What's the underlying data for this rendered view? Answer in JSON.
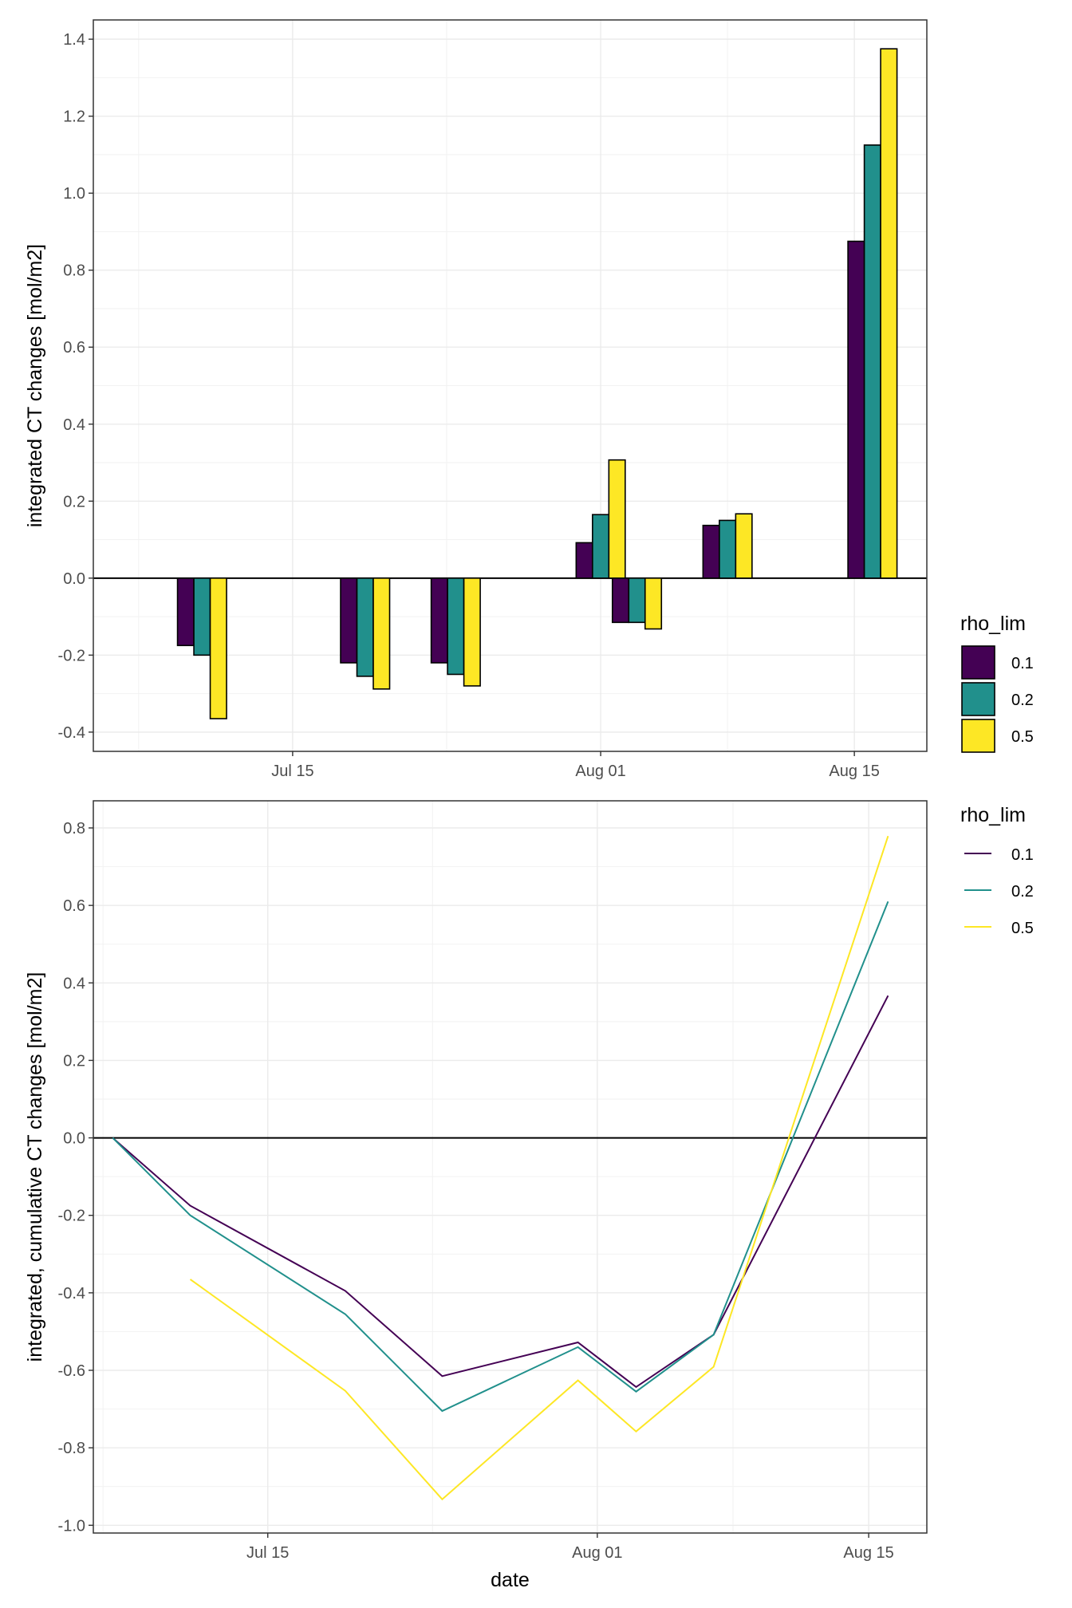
{
  "chart_data": [
    {
      "type": "bar",
      "title": "",
      "xlabel": "",
      "ylabel": "integrated CT changes [mol/m2]",
      "x_ticks": [
        "Jul 15",
        "Aug 01",
        "Aug 15"
      ],
      "x_tick_dates": [
        "2021-07-15",
        "2021-08-01",
        "2021-08-15"
      ],
      "xlim": [
        "2021-07-04",
        "2021-08-19"
      ],
      "y_ticks": [
        "-0.4",
        "-0.2",
        "0.0",
        "0.2",
        "0.4",
        "0.6",
        "0.8",
        "1.0",
        "1.2",
        "1.4"
      ],
      "ylim": [
        -0.45,
        1.45
      ],
      "grid": true,
      "zero_line": true,
      "x": [
        "2021-07-10",
        "2021-07-19",
        "2021-07-24",
        "2021-08-01",
        "2021-08-03",
        "2021-08-08",
        "2021-08-16"
      ],
      "series": [
        {
          "name": "0.1",
          "color": "#440154",
          "values": [
            -0.175,
            -0.22,
            -0.22,
            0.092,
            -0.115,
            0.137,
            0.875
          ]
        },
        {
          "name": "0.2",
          "color": "#21908c",
          "values": [
            -0.2,
            -0.255,
            -0.25,
            0.165,
            -0.115,
            0.15,
            1.125
          ]
        },
        {
          "name": "0.5",
          "color": "#fde725",
          "values": [
            -0.365,
            -0.288,
            -0.28,
            0.307,
            -0.132,
            0.167,
            1.375
          ]
        }
      ],
      "legend": {
        "title": "rho_lim",
        "position": "right",
        "labels": [
          "0.1",
          "0.2",
          "0.5"
        ]
      }
    },
    {
      "type": "line",
      "title": "",
      "xlabel": "date",
      "ylabel": "integrated, cumulative CT changes [mol/m2]",
      "x_ticks": [
        "Jul 15",
        "Aug 01",
        "Aug 15"
      ],
      "x_tick_dates": [
        "2021-07-15",
        "2021-08-01",
        "2021-08-15"
      ],
      "xlim": [
        "2021-07-06",
        "2021-08-18"
      ],
      "y_ticks": [
        "-1.0",
        "-0.8",
        "-0.6",
        "-0.4",
        "-0.2",
        "0.0",
        "0.2",
        "0.4",
        "0.6",
        "0.8"
      ],
      "ylim": [
        -1.02,
        0.87
      ],
      "grid": true,
      "zero_line": true,
      "series": [
        {
          "name": "0.1",
          "color": "#440154",
          "x": [
            "2021-07-07",
            "2021-07-11",
            "2021-07-19",
            "2021-07-24",
            "2021-07-31",
            "2021-08-03",
            "2021-08-07",
            "2021-08-16"
          ],
          "values": [
            0.0,
            -0.175,
            -0.395,
            -0.615,
            -0.528,
            -0.643,
            -0.508,
            0.367
          ]
        },
        {
          "name": "0.2",
          "color": "#21908c",
          "x": [
            "2021-07-07",
            "2021-07-11",
            "2021-07-19",
            "2021-07-24",
            "2021-07-31",
            "2021-08-03",
            "2021-08-07",
            "2021-08-16"
          ],
          "values": [
            0.0,
            -0.2,
            -0.455,
            -0.705,
            -0.54,
            -0.655,
            -0.508,
            0.61
          ]
        },
        {
          "name": "0.5",
          "color": "#fde725",
          "x": [
            "2021-07-11",
            "2021-07-19",
            "2021-07-24",
            "2021-07-31",
            "2021-08-03",
            "2021-08-07",
            "2021-08-16"
          ],
          "values": [
            -0.365,
            -0.653,
            -0.933,
            -0.626,
            -0.758,
            -0.591,
            0.779
          ]
        }
      ],
      "legend": {
        "title": "rho_lim",
        "position": "right",
        "labels": [
          "0.1",
          "0.2",
          "0.5"
        ]
      }
    }
  ]
}
